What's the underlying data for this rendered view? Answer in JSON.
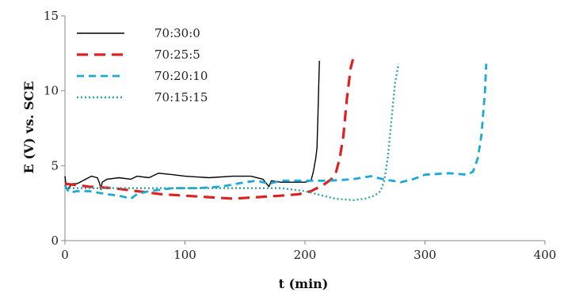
{
  "chart_data": {
    "type": "line",
    "title": "",
    "xlabel": "t (min)",
    "ylabel": "E (V) vs. SCE",
    "xlim": [
      0,
      400
    ],
    "ylim": [
      0,
      15
    ],
    "x_ticks": [
      0,
      100,
      200,
      300,
      400
    ],
    "y_ticks": [
      0,
      5,
      10,
      15
    ],
    "grid": false,
    "legend_position": "top-left",
    "series": [
      {
        "name": "70:30:0",
        "color": "#000000",
        "dash": "solid",
        "points": [
          [
            0,
            4.3
          ],
          [
            1,
            3.6
          ],
          [
            2,
            3.4
          ],
          [
            4,
            3.6
          ],
          [
            6,
            3.8
          ],
          [
            10,
            3.8
          ],
          [
            15,
            4.0
          ],
          [
            22,
            4.3
          ],
          [
            27,
            4.2
          ],
          [
            29,
            3.8
          ],
          [
            30,
            3.4
          ],
          [
            31,
            3.9
          ],
          [
            35,
            4.1
          ],
          [
            45,
            4.2
          ],
          [
            55,
            4.1
          ],
          [
            60,
            4.3
          ],
          [
            70,
            4.2
          ],
          [
            78,
            4.5
          ],
          [
            90,
            4.4
          ],
          [
            100,
            4.3
          ],
          [
            120,
            4.2
          ],
          [
            140,
            4.3
          ],
          [
            155,
            4.3
          ],
          [
            165,
            4.1
          ],
          [
            170,
            3.6
          ],
          [
            172,
            4.0
          ],
          [
            180,
            3.9
          ],
          [
            200,
            3.9
          ],
          [
            205,
            4.0
          ],
          [
            207,
            4.6
          ],
          [
            209,
            5.5
          ],
          [
            210,
            6.2
          ],
          [
            211,
            9.0
          ],
          [
            212,
            12.0
          ]
        ]
      },
      {
        "name": "70:25:5",
        "color": "#e02020",
        "dash": "long",
        "points": [
          [
            0,
            3.8
          ],
          [
            20,
            3.6
          ],
          [
            40,
            3.5
          ],
          [
            60,
            3.3
          ],
          [
            80,
            3.1
          ],
          [
            100,
            3.0
          ],
          [
            120,
            2.9
          ],
          [
            140,
            2.8
          ],
          [
            160,
            2.9
          ],
          [
            180,
            3.0
          ],
          [
            195,
            3.1
          ],
          [
            205,
            3.3
          ],
          [
            215,
            3.7
          ],
          [
            222,
            4.1
          ],
          [
            226,
            4.6
          ],
          [
            229,
            5.5
          ],
          [
            232,
            7.0
          ],
          [
            235,
            9.5
          ],
          [
            238,
            11.5
          ],
          [
            240,
            12.1
          ]
        ]
      },
      {
        "name": "70:20:10",
        "color": "#1ea8d8",
        "dash": "medium",
        "points": [
          [
            0,
            3.7
          ],
          [
            2,
            3.4
          ],
          [
            4,
            3.2
          ],
          [
            10,
            3.3
          ],
          [
            20,
            3.3
          ],
          [
            35,
            3.1
          ],
          [
            45,
            3.0
          ],
          [
            55,
            2.8
          ],
          [
            60,
            3.1
          ],
          [
            70,
            3.3
          ],
          [
            90,
            3.5
          ],
          [
            110,
            3.5
          ],
          [
            130,
            3.6
          ],
          [
            150,
            3.9
          ],
          [
            160,
            4.0
          ],
          [
            170,
            3.8
          ],
          [
            180,
            4.0
          ],
          [
            200,
            4.0
          ],
          [
            220,
            4.0
          ],
          [
            240,
            4.1
          ],
          [
            255,
            4.3
          ],
          [
            265,
            4.1
          ],
          [
            280,
            3.9
          ],
          [
            290,
            4.1
          ],
          [
            300,
            4.4
          ],
          [
            320,
            4.5
          ],
          [
            335,
            4.4
          ],
          [
            340,
            4.6
          ],
          [
            344,
            5.5
          ],
          [
            347,
            7.0
          ],
          [
            350,
            10.0
          ],
          [
            351,
            11.8
          ]
        ]
      },
      {
        "name": "70:15:15",
        "color": "#2aa8a0",
        "dash": "dotted",
        "points": [
          [
            0,
            3.5
          ],
          [
            20,
            3.5
          ],
          [
            40,
            3.5
          ],
          [
            60,
            3.5
          ],
          [
            80,
            3.5
          ],
          [
            100,
            3.5
          ],
          [
            120,
            3.5
          ],
          [
            140,
            3.5
          ],
          [
            160,
            3.5
          ],
          [
            180,
            3.5
          ],
          [
            200,
            3.3
          ],
          [
            215,
            3.0
          ],
          [
            225,
            2.8
          ],
          [
            240,
            2.7
          ],
          [
            250,
            2.8
          ],
          [
            258,
            3.0
          ],
          [
            263,
            3.3
          ],
          [
            266,
            4.0
          ],
          [
            269,
            5.5
          ],
          [
            272,
            8.0
          ],
          [
            275,
            10.5
          ],
          [
            278,
            11.8
          ]
        ]
      }
    ]
  }
}
